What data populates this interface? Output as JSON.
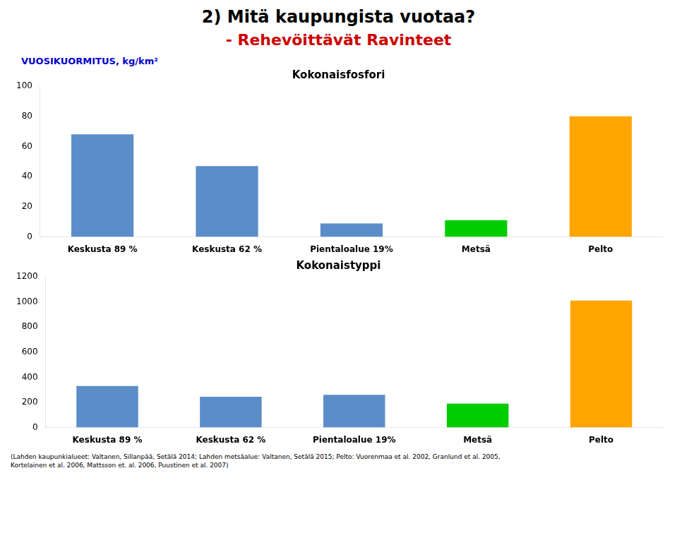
{
  "title": "2) Mitä kaupungista vuotaa?",
  "subtitle": "- Rehevöittävät Ravinteet",
  "annotations": [
    "(Lahden kaupunkialueet: Valtanen, Sillanpää, Setälä 2014; Lahden metsäalue:  Valtanen, Setälä 2015; Pelto:  Vuorenmaa et al. 2002, Granlund et al. 2005,\nKortelainen et al. 2006, Mattsson et. al. 2006, Puustinen et al. 2007)"
  ],
  "chart_data": [
    {
      "type": "bar",
      "title": "Kokonaisfosfori",
      "ylabel": "VUOSIKUORMITUS, kg/km²",
      "categories": [
        "Keskusta 89 %",
        "Keskusta 62 %",
        "Pientaloalue 19%",
        "Metsä",
        "Pelto"
      ],
      "values": [
        68,
        47,
        9,
        11,
        80
      ],
      "colors": [
        "#5b8dc8",
        "#5b8dc8",
        "#5b8dc8",
        "#00cc00",
        "#ffa500"
      ],
      "ylim": [
        0,
        100
      ],
      "yticks": [
        0,
        20,
        40,
        60,
        80,
        100
      ],
      "grid": false
    },
    {
      "type": "bar",
      "title": "Kokonaistyppi",
      "categories": [
        "Keskusta 89 %",
        "Keskusta 62 %",
        "Pientaloalue 19%",
        "Metsä",
        "Pelto"
      ],
      "values": [
        330,
        245,
        260,
        190,
        1010
      ],
      "colors": [
        "#5b8dc8",
        "#5b8dc8",
        "#5b8dc8",
        "#00cc00",
        "#ffa500"
      ],
      "ylim": [
        0,
        1200
      ],
      "yticks": [
        0,
        200,
        400,
        600,
        800,
        1000,
        1200
      ],
      "grid": false
    }
  ]
}
